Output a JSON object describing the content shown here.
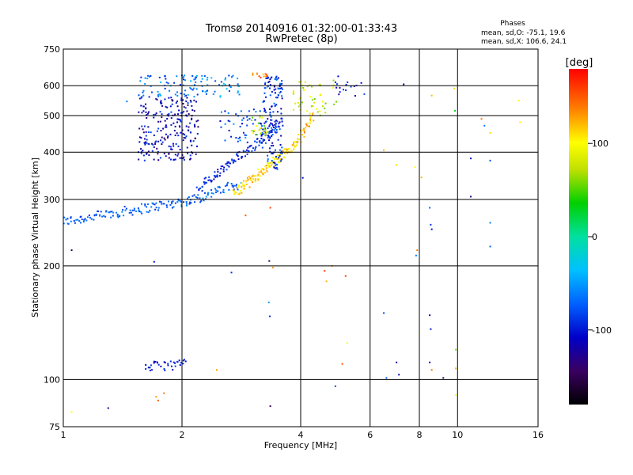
{
  "chart_data": {
    "type": "scatter",
    "title": "Tromsø 20140916 01:32:00-01:33:43",
    "subtitle": "RwPretec (8p)",
    "xlabel": "Frequency [MHz]",
    "ylabel": "Stationary phase Virtual Height [km]",
    "xscale": "log",
    "yscale": "log",
    "xlim": [
      1,
      16
    ],
    "ylim": [
      75,
      750
    ],
    "xticks": [
      "1",
      "2",
      "4",
      "6",
      "8",
      "10",
      "16"
    ],
    "yticks": [
      "75",
      "100",
      "200",
      "300",
      "400",
      "500",
      "600",
      "750"
    ],
    "grid": true,
    "legend_placement": "top-right",
    "stats_title": "Phases",
    "stats_line1": "mean, sd,O: -75.1, 19.6",
    "stats_line2": "mean, sd,X: 106.6, 24.1",
    "colorbar": {
      "label": "[deg]",
      "min": -180,
      "max": 180,
      "ticks": [
        "100",
        "0",
        "-100"
      ]
    },
    "traces": [
      {
        "x_start": 1.0,
        "x_end": 2.1,
        "h_start": 262,
        "h_end": 298,
        "phase": -75,
        "count": 120
      },
      {
        "x_start": 2.1,
        "x_end": 2.8,
        "h_start": 298,
        "h_end": 330,
        "phase": -70,
        "count": 50
      },
      {
        "x_start": 2.7,
        "x_end": 3.9,
        "h_start": 310,
        "h_end": 420,
        "phase": 110,
        "count": 120
      },
      {
        "x_start": 3.9,
        "x_end": 4.3,
        "h_start": 420,
        "h_end": 500,
        "phase": 120,
        "count": 30
      },
      {
        "x_start": 2.2,
        "x_end": 3.6,
        "h_start": 320,
        "h_end": 480,
        "phase": -95,
        "count": 120
      },
      {
        "x_start": 1.62,
        "x_end": 2.05,
        "h_start": 108,
        "h_end": 110,
        "phase": -100,
        "count": 35
      }
    ],
    "clusters": [
      {
        "x_min": 1.55,
        "x_max": 2.2,
        "h_min": 380,
        "h_max": 560,
        "phase": -110,
        "count": 230
      },
      {
        "x_min": 1.55,
        "x_max": 2.2,
        "h_min": 560,
        "h_max": 640,
        "phase": -70,
        "count": 60
      },
      {
        "x_min": 2.1,
        "x_max": 2.8,
        "h_min": 560,
        "h_max": 640,
        "phase": -60,
        "count": 50
      },
      {
        "x_min": 3.2,
        "x_max": 3.6,
        "h_min": 360,
        "h_max": 640,
        "phase": -90,
        "count": 140
      },
      {
        "x_min": 2.5,
        "x_max": 3.4,
        "h_min": 420,
        "h_max": 520,
        "phase": -80,
        "count": 60
      },
      {
        "x_min": 3.0,
        "x_max": 3.3,
        "h_min": 440,
        "h_max": 500,
        "phase": 80,
        "count": 25
      },
      {
        "x_min": 3.8,
        "x_max": 5.0,
        "h_min": 500,
        "h_max": 620,
        "phase": 80,
        "count": 50
      },
      {
        "x_min": 4.9,
        "x_max": 5.6,
        "h_min": 560,
        "h_max": 640,
        "phase": -110,
        "count": 15
      },
      {
        "x_min": 3.0,
        "x_max": 3.3,
        "h_min": 630,
        "h_max": 650,
        "phase": 140,
        "count": 12
      }
    ],
    "scatter_points": [
      {
        "x": 1.05,
        "y": 220,
        "phase": -160
      },
      {
        "x": 1.05,
        "y": 82,
        "phase": 100
      },
      {
        "x": 1.3,
        "y": 84,
        "phase": -120
      },
      {
        "x": 1.7,
        "y": 205,
        "phase": -100
      },
      {
        "x": 1.72,
        "y": 90,
        "phase": 130
      },
      {
        "x": 1.8,
        "y": 92,
        "phase": 140
      },
      {
        "x": 1.74,
        "y": 88,
        "phase": 150
      },
      {
        "x": 2.45,
        "y": 106,
        "phase": 130
      },
      {
        "x": 2.67,
        "y": 192,
        "phase": -90
      },
      {
        "x": 2.9,
        "y": 272,
        "phase": 150
      },
      {
        "x": 3.35,
        "y": 285,
        "phase": 160
      },
      {
        "x": 3.33,
        "y": 206,
        "phase": -140
      },
      {
        "x": 3.32,
        "y": 160,
        "phase": -50
      },
      {
        "x": 3.34,
        "y": 147,
        "phase": -90
      },
      {
        "x": 3.35,
        "y": 85,
        "phase": -140
      },
      {
        "x": 3.4,
        "y": 198,
        "phase": 130
      },
      {
        "x": 4.05,
        "y": 342,
        "phase": -100
      },
      {
        "x": 4.6,
        "y": 194,
        "phase": 160
      },
      {
        "x": 4.65,
        "y": 182,
        "phase": 120
      },
      {
        "x": 4.9,
        "y": 96,
        "phase": -80
      },
      {
        "x": 4.8,
        "y": 200,
        "phase": 130
      },
      {
        "x": 5.1,
        "y": 110,
        "phase": 150
      },
      {
        "x": 5.2,
        "y": 188,
        "phase": 160
      },
      {
        "x": 5.25,
        "y": 125,
        "phase": 100
      },
      {
        "x": 5.7,
        "y": 610,
        "phase": -110
      },
      {
        "x": 5.8,
        "y": 570,
        "phase": -80
      },
      {
        "x": 6.5,
        "y": 405,
        "phase": 120
      },
      {
        "x": 6.5,
        "y": 150,
        "phase": -80
      },
      {
        "x": 6.6,
        "y": 101,
        "phase": -70
      },
      {
        "x": 7.0,
        "y": 111,
        "phase": -120
      },
      {
        "x": 7.0,
        "y": 370,
        "phase": 110
      },
      {
        "x": 7.1,
        "y": 103,
        "phase": -110
      },
      {
        "x": 7.3,
        "y": 605,
        "phase": -120
      },
      {
        "x": 7.8,
        "y": 365,
        "phase": 100
      },
      {
        "x": 7.85,
        "y": 213,
        "phase": -60
      },
      {
        "x": 7.9,
        "y": 220,
        "phase": 140
      },
      {
        "x": 8.1,
        "y": 343,
        "phase": 120
      },
      {
        "x": 8.5,
        "y": 285,
        "phase": -70
      },
      {
        "x": 8.55,
        "y": 257,
        "phase": -90
      },
      {
        "x": 8.6,
        "y": 250,
        "phase": -100
      },
      {
        "x": 8.5,
        "y": 148,
        "phase": -130
      },
      {
        "x": 8.55,
        "y": 136,
        "phase": -100
      },
      {
        "x": 8.5,
        "y": 111,
        "phase": -120
      },
      {
        "x": 8.6,
        "y": 106,
        "phase": 140
      },
      {
        "x": 8.6,
        "y": 565,
        "phase": 120
      },
      {
        "x": 9.2,
        "y": 101,
        "phase": -140
      },
      {
        "x": 9.8,
        "y": 590,
        "phase": 110
      },
      {
        "x": 9.85,
        "y": 515,
        "phase": 30
      },
      {
        "x": 9.9,
        "y": 120,
        "phase": 60
      },
      {
        "x": 9.9,
        "y": 107,
        "phase": 120
      },
      {
        "x": 9.9,
        "y": 91,
        "phase": 100
      },
      {
        "x": 10.8,
        "y": 385,
        "phase": -110
      },
      {
        "x": 10.8,
        "y": 305,
        "phase": -130
      },
      {
        "x": 11.5,
        "y": 490,
        "phase": 140
      },
      {
        "x": 11.7,
        "y": 470,
        "phase": -60
      },
      {
        "x": 12.1,
        "y": 380,
        "phase": -80
      },
      {
        "x": 12.1,
        "y": 260,
        "phase": -60
      },
      {
        "x": 12.1,
        "y": 225,
        "phase": -70
      },
      {
        "x": 12.1,
        "y": 450,
        "phase": 110
      },
      {
        "x": 14.3,
        "y": 548,
        "phase": 100
      },
      {
        "x": 14.4,
        "y": 480,
        "phase": 100
      },
      {
        "x": 1.45,
        "y": 545,
        "phase": -60
      }
    ]
  }
}
